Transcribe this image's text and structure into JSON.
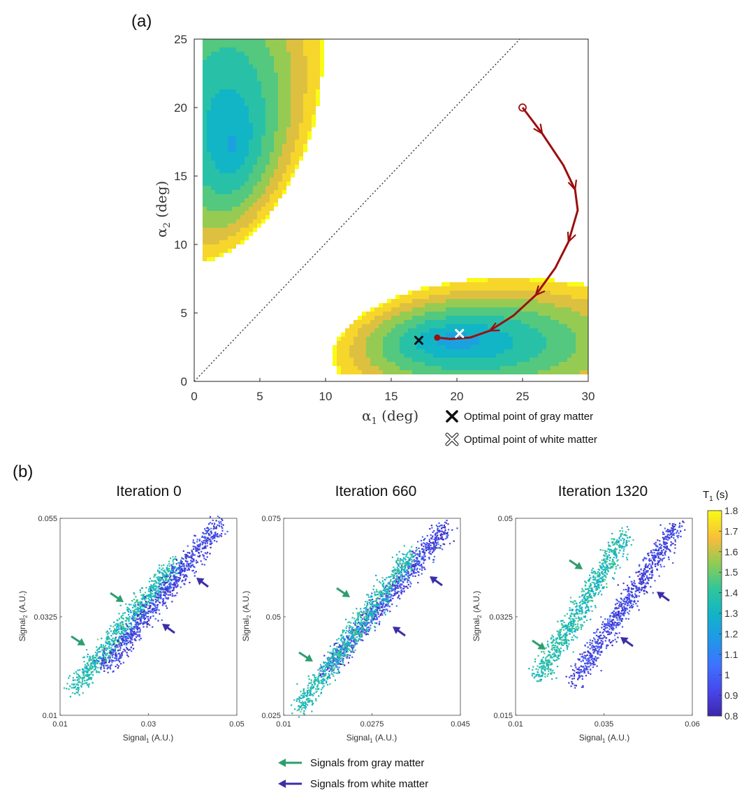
{
  "panel_a": {
    "label": "(a)",
    "legend": {
      "gray": "Optimal point of gray matter",
      "white": "Optimal point of white matter"
    }
  },
  "panel_b": {
    "label": "(b)",
    "legend": {
      "gray": "Signals from gray matter",
      "white": "Signals from white matter"
    }
  },
  "colors": {
    "gray_matter_arrow": "#2e9e6e",
    "white_matter_arrow": "#3b2fa8",
    "path": "#9b0f0f",
    "gray_marker": "#111111",
    "white_marker": "#ffffff"
  },
  "chart_data": [
    {
      "id": "a",
      "type": "contour",
      "xlabel_main": "α",
      "xlabel_sub": "1",
      "xlabel_rest": " (deg)",
      "ylabel_main": "α",
      "ylabel_sub": "2",
      "ylabel_rest": " (deg)",
      "xlim": [
        0,
        30
      ],
      "ylim": [
        0,
        25
      ],
      "xticks": [
        0,
        5,
        10,
        15,
        20,
        25,
        30
      ],
      "yticks": [
        0,
        5,
        10,
        15,
        20,
        25
      ],
      "optimization_path": [
        [
          25,
          20
        ],
        [
          26.5,
          18.1
        ],
        [
          28.1,
          15.8
        ],
        [
          29,
          14
        ],
        [
          29.2,
          12.5
        ],
        [
          28.5,
          10.2
        ],
        [
          27.5,
          8.3
        ],
        [
          26,
          6.3
        ],
        [
          24.3,
          4.8
        ],
        [
          22.5,
          3.7
        ],
        [
          21,
          3.2
        ],
        [
          19.5,
          3.1
        ],
        [
          18.5,
          3.2
        ]
      ],
      "start_point": [
        25,
        20
      ],
      "optimal_gray_matter": [
        17.1,
        3.0
      ],
      "optimal_white_matter": [
        20.2,
        3.5
      ]
    },
    {
      "id": "b1",
      "type": "scatter",
      "title": "Iteration 0",
      "xlabel_main": "Signal",
      "xlabel_sub": "1",
      "xlabel_rest": " (A.U.)",
      "ylabel_main": "Signal",
      "ylabel_sub": "2",
      "ylabel_rest": " (A.U.)",
      "xlim": [
        0.01,
        0.05
      ],
      "ylim": [
        0.01,
        0.055
      ],
      "xticks": [
        "0.01",
        "0.03",
        "0.05"
      ],
      "yticks": [
        "0.01",
        "0.0325",
        "0.055"
      ],
      "gray_cluster": {
        "x": [
          0.013,
          0.036
        ],
        "y": [
          0.0165,
          0.045
        ],
        "t1": 1.35
      },
      "white_cluster": {
        "x": [
          0.02,
          0.046
        ],
        "y": [
          0.021,
          0.054
        ],
        "t1": 0.92
      }
    },
    {
      "id": "b2",
      "type": "scatter",
      "title": "Iteration 660",
      "xlabel_main": "Signal",
      "xlabel_sub": "1",
      "xlabel_rest": " (A.U.)",
      "ylabel_main": "Signal",
      "ylabel_sub": "2",
      "ylabel_rest": " (A.U.)",
      "xlim": [
        0.01,
        0.045
      ],
      "ylim": [
        0.025,
        0.075
      ],
      "xticks": [
        "0.01",
        "0.0275",
        "0.045"
      ],
      "yticks": [
        "0.025",
        "0.05",
        "0.075"
      ],
      "gray_cluster": {
        "x": [
          0.013,
          0.035
        ],
        "y": [
          0.027,
          0.066
        ],
        "t1": 1.35
      },
      "white_cluster": {
        "x": [
          0.018,
          0.042
        ],
        "y": [
          0.036,
          0.073
        ],
        "t1": 0.92
      }
    },
    {
      "id": "b3",
      "type": "scatter",
      "title": "Iteration 1320",
      "xlabel_main": "Signal",
      "xlabel_sub": "1",
      "xlabel_rest": " (A.U.)",
      "ylabel_main": "Signal",
      "ylabel_sub": "2",
      "ylabel_rest": " (A.U.)",
      "xlim": [
        0.01,
        0.06
      ],
      "ylim": [
        0.015,
        0.05
      ],
      "xticks": [
        "0.01",
        "0.035",
        "0.06"
      ],
      "yticks": [
        "0.015",
        "0.0325",
        "0.05"
      ],
      "gray_cluster": {
        "x": [
          0.0165,
          0.0405
        ],
        "y": [
          0.022,
          0.047
        ],
        "t1": 1.35
      },
      "white_cluster": {
        "x": [
          0.0265,
          0.0555
        ],
        "y": [
          0.0215,
          0.0485
        ],
        "t1": 0.92
      }
    }
  ],
  "colorbar": {
    "label_main": "T",
    "label_sub": "1",
    "label_rest": " (s)",
    "min": 0.8,
    "max": 1.8,
    "ticks": [
      "0.8",
      "0.9",
      "1",
      "1.1",
      "1.2",
      "1.3",
      "1.4",
      "1.5",
      "1.6",
      "1.7",
      "1.8"
    ]
  }
}
